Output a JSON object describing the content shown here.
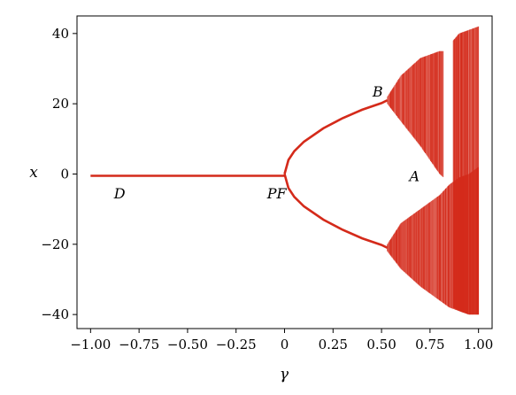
{
  "chart_data": {
    "type": "scatter",
    "title": "",
    "xlabel": "γ",
    "ylabel": "x",
    "xlim": [
      -1.07,
      1.07
    ],
    "ylim": [
      -44,
      45
    ],
    "grid": false,
    "x_ticks": [
      -1.0,
      -0.75,
      -0.5,
      -0.25,
      0,
      0.25,
      0.5,
      0.75,
      1.0
    ],
    "x_tick_labels": [
      "−1.00",
      "−0.75",
      "−0.50",
      "−0.25",
      "0",
      "0.25",
      "0.50",
      "0.75",
      "1.00"
    ],
    "y_ticks": [
      -40,
      -20,
      0,
      20,
      40
    ],
    "y_tick_labels": [
      "−40",
      "−20",
      "0",
      "20",
      "40"
    ],
    "point_color": "#d42a1a",
    "annotations": [
      {
        "text": "D",
        "x": -0.85,
        "y": -7
      },
      {
        "text": "PF",
        "x": -0.04,
        "y": -7
      },
      {
        "text": "B",
        "x": 0.48,
        "y": 22
      },
      {
        "text": "A",
        "x": 0.67,
        "y": -2
      }
    ],
    "series": [
      {
        "segment": "fixed point (D)",
        "x": [
          -1.0,
          -0.75,
          -0.5,
          -0.25,
          0.0
        ],
        "y": [
          -0.5,
          -0.5,
          -0.5,
          -0.5,
          -0.5
        ]
      },
      {
        "segment": "upper branch after pitchfork",
        "x": [
          0.0,
          0.02,
          0.05,
          0.1,
          0.2,
          0.3,
          0.4,
          0.5,
          0.53
        ],
        "y": [
          0,
          4,
          6.5,
          9.2,
          13,
          15.9,
          18.3,
          20.2,
          21
        ]
      },
      {
        "segment": "lower branch after pitchfork",
        "x": [
          0.0,
          0.02,
          0.05,
          0.1,
          0.2,
          0.3,
          0.4,
          0.5,
          0.53
        ],
        "y": [
          0,
          -4,
          -6.5,
          -9.2,
          -13,
          -15.9,
          -18.3,
          -20.2,
          -21
        ]
      },
      {
        "segment": "upper chaotic band",
        "x": [
          0.53,
          0.6,
          0.7,
          0.8,
          0.82
        ],
        "y_max": [
          22,
          28,
          33,
          35,
          35
        ],
        "y_min": [
          20,
          15,
          8,
          0,
          -1
        ]
      },
      {
        "segment": "lower chaotic band",
        "x": [
          0.53,
          0.6,
          0.7,
          0.8,
          0.85,
          0.9,
          0.95,
          1.0
        ],
        "y_max": [
          -20,
          -14,
          -10,
          -6,
          -3,
          -1,
          0,
          2
        ],
        "y_min": [
          -22,
          -27,
          -32,
          -36,
          -38,
          -39,
          -40,
          -40
        ]
      },
      {
        "segment": "full chaotic region",
        "x": [
          0.87,
          0.9,
          0.95,
          1.0
        ],
        "y_max": [
          38,
          40,
          41,
          42
        ],
        "y_min": [
          -38,
          -39,
          -40,
          -40
        ]
      }
    ]
  }
}
